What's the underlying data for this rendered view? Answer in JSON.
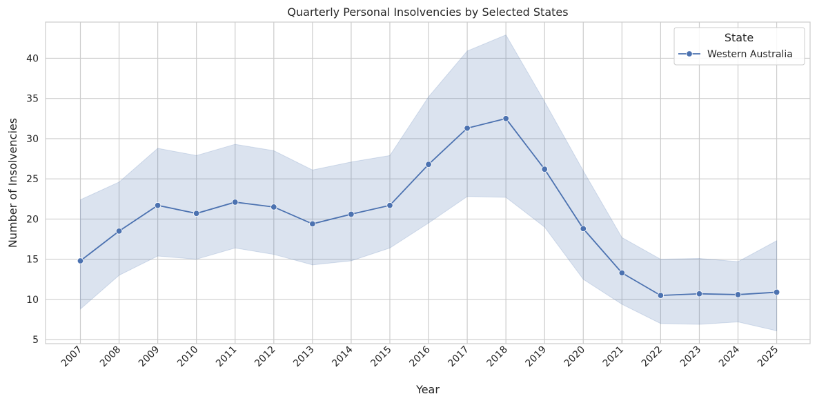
{
  "chart_data": {
    "type": "line",
    "title": "Quarterly Personal Insolvencies by Selected States",
    "xlabel": "Year",
    "ylabel": "Number of Insolvencies",
    "x": [
      "2007",
      "2008",
      "2009",
      "2010",
      "2011",
      "2012",
      "2013",
      "2014",
      "2015",
      "2016",
      "2017",
      "2018",
      "2019",
      "2020",
      "2021",
      "2022",
      "2023",
      "2024",
      "2025"
    ],
    "ylim": [
      4.5,
      44.5
    ],
    "yticks": [
      5,
      10,
      15,
      20,
      25,
      30,
      35,
      40
    ],
    "grid": true,
    "legend": {
      "title": "State",
      "position": "top-right"
    },
    "series": [
      {
        "name": "Western Australia",
        "color": "#4c72b0",
        "marker": "circle",
        "values": [
          14.8,
          18.5,
          21.7,
          20.7,
          22.1,
          21.5,
          19.4,
          20.6,
          21.7,
          26.8,
          31.3,
          32.5,
          26.2,
          18.8,
          13.3,
          10.5,
          10.7,
          10.6,
          10.9
        ],
        "ci_lower": [
          8.8,
          13.0,
          15.4,
          15.0,
          16.4,
          15.6,
          14.3,
          14.8,
          16.4,
          19.5,
          22.8,
          22.7,
          19.0,
          12.5,
          9.4,
          7.0,
          6.9,
          7.2,
          6.1
        ],
        "ci_upper": [
          22.4,
          24.6,
          28.8,
          27.9,
          29.3,
          28.5,
          26.1,
          27.1,
          27.9,
          35.2,
          40.9,
          42.9,
          34.6,
          26.0,
          17.7,
          15.0,
          15.1,
          14.7,
          17.3
        ]
      }
    ]
  }
}
